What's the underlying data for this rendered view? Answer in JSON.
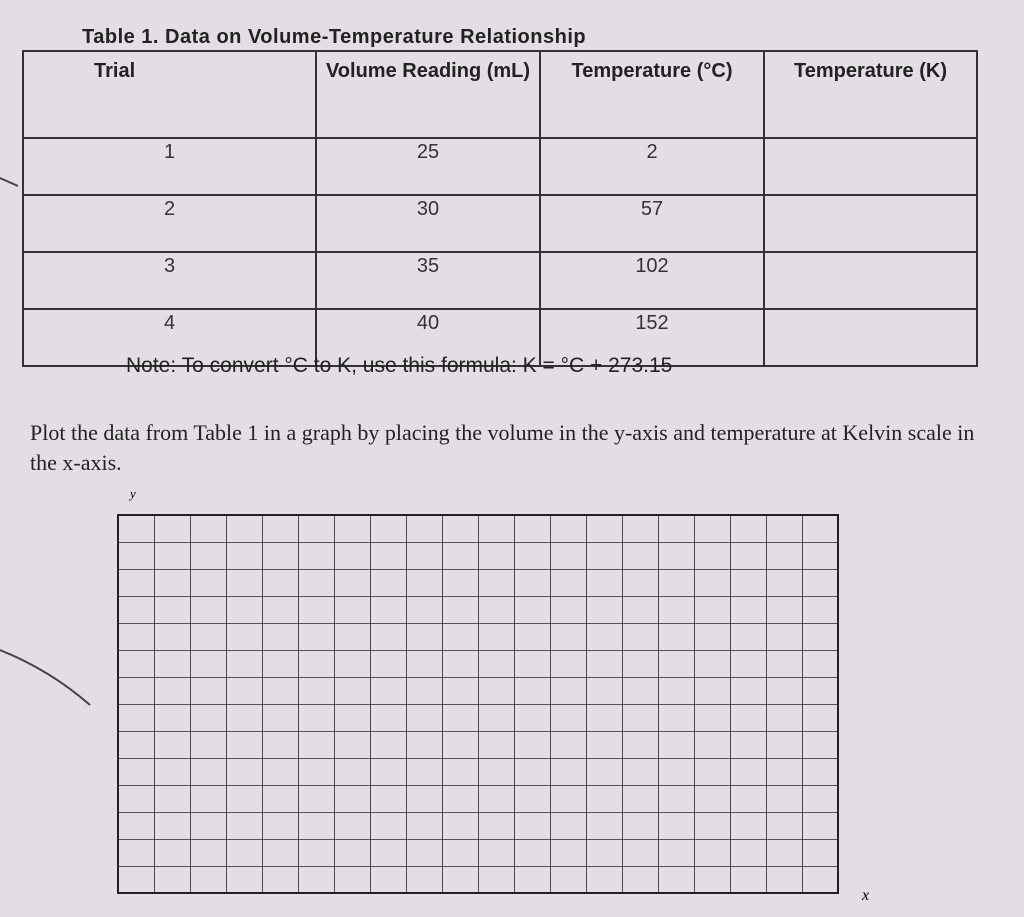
{
  "title": "Table 1. Data on Volume-Temperature Relationship",
  "table": {
    "headers": [
      "Trial",
      "Volume Reading (mL)",
      "Temperature (°C)",
      "Temperature (K)"
    ],
    "rows": [
      [
        1,
        25,
        2
      ],
      [
        2,
        30,
        57
      ],
      [
        3,
        35,
        102
      ],
      [
        4,
        40,
        152
      ]
    ]
  },
  "note": "Note: To convert °C to K, use this formula: K = °C + 273.15",
  "instruction": "Plot the data from Table 1 in a graph by placing the volume in the y-axis and temperature at Kelvin scale in the x-axis.",
  "graph": {
    "y_label": "y",
    "x_label": "x"
  }
}
